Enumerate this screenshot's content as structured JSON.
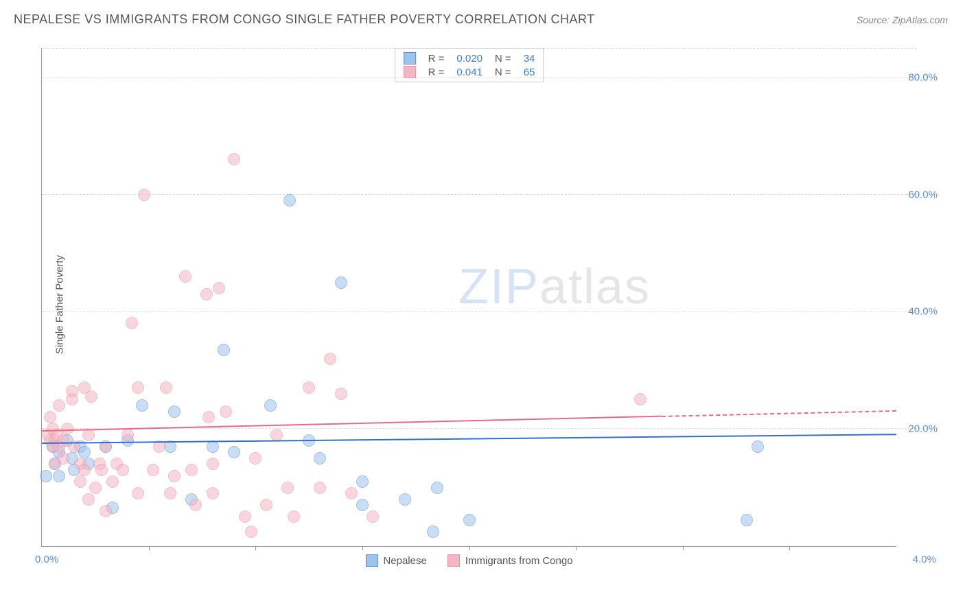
{
  "header": {
    "title": "NEPALESE VS IMMIGRANTS FROM CONGO SINGLE FATHER POVERTY CORRELATION CHART",
    "source": "Source: ZipAtlas.com"
  },
  "watermark": {
    "part1": "ZIP",
    "part2": "atlas"
  },
  "chart": {
    "type": "scatter",
    "y_label": "Single Father Poverty",
    "x_min": 0.0,
    "x_max": 4.0,
    "y_min": 0.0,
    "y_max": 85.0,
    "x_tick_step": 0.5,
    "y_gridlines": [
      20.0,
      40.0,
      60.0,
      80.0
    ],
    "y_tick_labels": [
      "20.0%",
      "40.0%",
      "60.0%",
      "80.0%"
    ],
    "x_min_label": "0.0%",
    "x_max_label": "4.0%",
    "background_color": "#ffffff",
    "grid_color": "#dddddd",
    "axis_color": "#999999",
    "tick_label_color": "#5b8dd6",
    "title_color": "#555555",
    "title_fontsize": 18,
    "label_fontsize": 15,
    "marker_radius": 9,
    "marker_opacity": 0.55,
    "series": [
      {
        "name": "Nepalese",
        "fill_color": "#9ec3ed",
        "stroke_color": "#5b8dd6",
        "trend_color": "#2f6fd0",
        "R": "0.020",
        "N": "34",
        "trend": {
          "x0": 0.0,
          "y0": 17.5,
          "x1": 4.0,
          "y1": 19.0,
          "dash_after_x": 4.0
        },
        "points": [
          [
            0.02,
            12
          ],
          [
            0.05,
            17
          ],
          [
            0.06,
            14
          ],
          [
            0.08,
            16
          ],
          [
            0.08,
            12
          ],
          [
            0.12,
            18
          ],
          [
            0.14,
            15
          ],
          [
            0.15,
            13
          ],
          [
            0.18,
            17
          ],
          [
            0.2,
            16
          ],
          [
            0.22,
            14
          ],
          [
            0.3,
            17
          ],
          [
            0.33,
            6.5
          ],
          [
            0.4,
            18
          ],
          [
            0.47,
            24
          ],
          [
            0.6,
            17
          ],
          [
            0.62,
            23
          ],
          [
            0.7,
            8
          ],
          [
            0.8,
            17
          ],
          [
            0.85,
            33.5
          ],
          [
            0.9,
            16
          ],
          [
            1.07,
            24
          ],
          [
            1.16,
            59
          ],
          [
            1.25,
            18
          ],
          [
            1.3,
            15
          ],
          [
            1.4,
            45
          ],
          [
            1.5,
            11
          ],
          [
            1.5,
            7
          ],
          [
            1.7,
            8
          ],
          [
            1.83,
            2.5
          ],
          [
            1.85,
            10
          ],
          [
            2.0,
            4.5
          ],
          [
            3.3,
            4.5
          ],
          [
            3.35,
            17
          ]
        ]
      },
      {
        "name": "Immigrants from Congo",
        "fill_color": "#f4b6c2",
        "stroke_color": "#e98fa3",
        "trend_color": "#e56b87",
        "R": "0.041",
        "N": "65",
        "trend": {
          "x0": 0.0,
          "y0": 19.5,
          "x1": 2.9,
          "y1": 22.0,
          "dash_after_x": 2.9
        },
        "points": [
          [
            0.03,
            19
          ],
          [
            0.04,
            18
          ],
          [
            0.04,
            22
          ],
          [
            0.05,
            17
          ],
          [
            0.05,
            20
          ],
          [
            0.06,
            18
          ],
          [
            0.06,
            14
          ],
          [
            0.07,
            19
          ],
          [
            0.08,
            17
          ],
          [
            0.08,
            24
          ],
          [
            0.1,
            18
          ],
          [
            0.1,
            15
          ],
          [
            0.12,
            20
          ],
          [
            0.14,
            25
          ],
          [
            0.14,
            26.5
          ],
          [
            0.15,
            17
          ],
          [
            0.18,
            11
          ],
          [
            0.18,
            14
          ],
          [
            0.2,
            27
          ],
          [
            0.2,
            13
          ],
          [
            0.22,
            19
          ],
          [
            0.22,
            8
          ],
          [
            0.23,
            25.5
          ],
          [
            0.25,
            10
          ],
          [
            0.27,
            14
          ],
          [
            0.28,
            13
          ],
          [
            0.3,
            17
          ],
          [
            0.3,
            6
          ],
          [
            0.33,
            11
          ],
          [
            0.35,
            14
          ],
          [
            0.38,
            13
          ],
          [
            0.4,
            19
          ],
          [
            0.42,
            38
          ],
          [
            0.45,
            9
          ],
          [
            0.45,
            27
          ],
          [
            0.48,
            60
          ],
          [
            0.52,
            13
          ],
          [
            0.55,
            17
          ],
          [
            0.58,
            27
          ],
          [
            0.6,
            9
          ],
          [
            0.62,
            12
          ],
          [
            0.67,
            46
          ],
          [
            0.7,
            13
          ],
          [
            0.72,
            7
          ],
          [
            0.77,
            43
          ],
          [
            0.78,
            22
          ],
          [
            0.8,
            14
          ],
          [
            0.8,
            9
          ],
          [
            0.83,
            44
          ],
          [
            0.86,
            23
          ],
          [
            0.9,
            66
          ],
          [
            0.95,
            5
          ],
          [
            0.98,
            2.5
          ],
          [
            1.0,
            15
          ],
          [
            1.05,
            7
          ],
          [
            1.1,
            19
          ],
          [
            1.15,
            10
          ],
          [
            1.18,
            5
          ],
          [
            1.25,
            27
          ],
          [
            1.3,
            10
          ],
          [
            1.35,
            32
          ],
          [
            1.4,
            26
          ],
          [
            1.45,
            9
          ],
          [
            1.55,
            5
          ],
          [
            2.8,
            25
          ]
        ]
      }
    ],
    "legend_bottom": [
      {
        "label": "Nepalese",
        "fill": "#9ec3ed",
        "stroke": "#5b8dd6"
      },
      {
        "label": "Immigrants from Congo",
        "fill": "#f4b6c2",
        "stroke": "#e98fa3"
      }
    ],
    "stats_box_labels": {
      "R": "R =",
      "N": "N ="
    }
  }
}
